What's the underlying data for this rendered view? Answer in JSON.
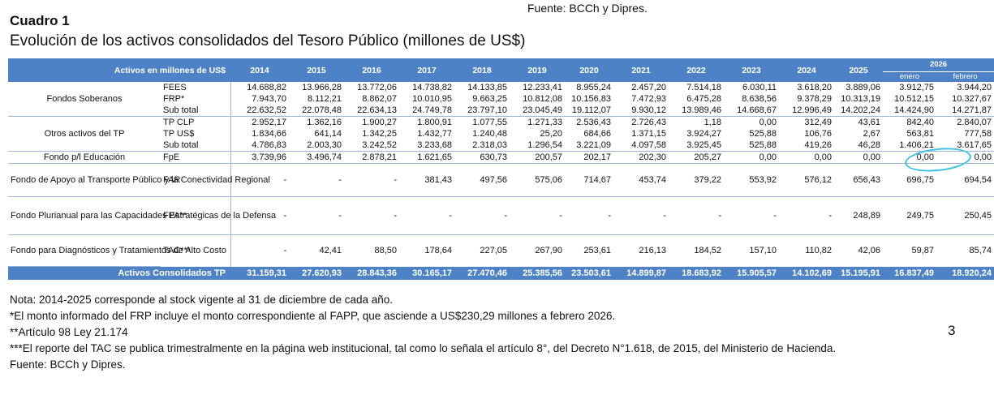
{
  "source_top": "Fuente: BCCh y Dipres.",
  "title": "Cuadro 1",
  "subtitle": "Evolución de los activos consolidados del Tesoro Público (millones de US$)",
  "table": {
    "header_label": "Activos en millones de US$",
    "years": [
      "2014",
      "2015",
      "2016",
      "2017",
      "2018",
      "2019",
      "2020",
      "2021",
      "2022",
      "2023",
      "2024",
      "2025"
    ],
    "year_2026": "2026",
    "months_2026": [
      "enero",
      "febrero"
    ],
    "groups": {
      "fondos_soberanos": "Fondos Soberanos",
      "otros_activos": "Otros activos del TP",
      "fondo_educacion": "Fondo p/l Educación",
      "far": "Fondo de Apoyo al Transporte Público y la Conectividad Regional",
      "fpa": "Fondo Plurianual para las Capacidades Estratégicas de la Defensa",
      "tac": "Fondo para Diagnósticos y Tratamientos de Alto Costo"
    },
    "rows": {
      "fees": {
        "code": "FEES",
        "v": [
          "14.688,82",
          "13.966,28",
          "13.772,06",
          "14.738,82",
          "14.133,85",
          "12.233,41",
          "8.955,24",
          "2.457,20",
          "7.514,18",
          "6.030,11",
          "3.618,20",
          "3.889,06",
          "3.912,75",
          "3.944,20"
        ]
      },
      "frp": {
        "code": "FRP*",
        "v": [
          "7.943,70",
          "8.112,21",
          "8.862,07",
          "10.010,95",
          "9.663,25",
          "10.812,08",
          "10.156,83",
          "7.472,93",
          "6.475,28",
          "8.638,56",
          "9.378,29",
          "10.313,19",
          "10.512,15",
          "10.327,67"
        ]
      },
      "sub1": {
        "code": "Sub total",
        "v": [
          "22.632,52",
          "22.078,48",
          "22.634,13",
          "24.749,78",
          "23.797,10",
          "23.045,49",
          "19.112,07",
          "9.930,12",
          "13.989,46",
          "14.668,67",
          "12.996,49",
          "14.202,24",
          "14.424,90",
          "14.271,87"
        ]
      },
      "tpclp": {
        "code": "TP CLP",
        "v": [
          "2.952,17",
          "1.362,16",
          "1.900,27",
          "1.800,91",
          "1.077,55",
          "1.271,33",
          "2.536,43",
          "2.726,43",
          "1,18",
          "0,00",
          "312,49",
          "43,61",
          "842,40",
          "2.840,07"
        ]
      },
      "tpusd": {
        "code": "TP US$",
        "v": [
          "1.834,66",
          "641,14",
          "1.342,25",
          "1.432,77",
          "1.240,48",
          "25,20",
          "684,66",
          "1.371,15",
          "3.924,27",
          "525,88",
          "106,76",
          "2,67",
          "563,81",
          "777,58"
        ]
      },
      "sub2": {
        "code": "Sub total",
        "v": [
          "4.786,83",
          "2.003,30",
          "3.242,52",
          "3.233,68",
          "2.318,03",
          "1.296,54",
          "3.221,09",
          "4.097,58",
          "3.925,45",
          "525,88",
          "419,26",
          "46,28",
          "1.406,21",
          "3.617,65"
        ]
      },
      "fpe": {
        "code": "FpE",
        "v": [
          "3.739,96",
          "3.496,74",
          "2.878,21",
          "1.621,65",
          "630,73",
          "200,57",
          "202,17",
          "202,30",
          "205,27",
          "0,00",
          "0,00",
          "0,00",
          "0,00",
          "0,00"
        ]
      },
      "far": {
        "code": "FAR",
        "v": [
          "-",
          "-",
          "-",
          "381,43",
          "497,56",
          "575,06",
          "714,67",
          "453,74",
          "379,22",
          "553,92",
          "576,12",
          "656,43",
          "696,75",
          "694,54"
        ]
      },
      "fpa": {
        "code": "FPA**",
        "v": [
          "-",
          "-",
          "-",
          "-",
          "-",
          "-",
          "-",
          "-",
          "-",
          "-",
          "-",
          "248,89",
          "249,75",
          "250,45"
        ]
      },
      "tac": {
        "code": "TAC***",
        "v": [
          "-",
          "42,41",
          "88,50",
          "178,64",
          "227,05",
          "267,90",
          "253,61",
          "216,13",
          "184,52",
          "157,10",
          "110,82",
          "42,06",
          "59,87",
          "85,74"
        ]
      }
    },
    "total": {
      "label": "Activos Consolidados TP",
      "v": [
        "31.159,31",
        "27.620,93",
        "28.843,36",
        "30.165,17",
        "27.470,46",
        "25.385,56",
        "23.503,61",
        "14.899,87",
        "18.683,92",
        "15.905,57",
        "14.102,69",
        "15.195,91",
        "16.837,49",
        "18.920,24"
      ]
    }
  },
  "notes": [
    "Nota: 2014-2025 corresponde al stock vigente al 31 de diciembre de cada año.",
    "*El monto informado del FRP incluye el monto correspondiente al FAPP, que asciende a US$230,29 millones a febrero 2026.",
    "**Artículo 98 Ley 21.174",
    "***El reporte del TAC se publica trimestralmente en la página web institucional, tal como lo señala el artículo 8°, del Decreto N°1.618, de 2015, del Ministerio de Hacienda.",
    "Fuente: BCCh y Dipres."
  ],
  "page_number": "3",
  "annotation_color": "#3fc1e6"
}
